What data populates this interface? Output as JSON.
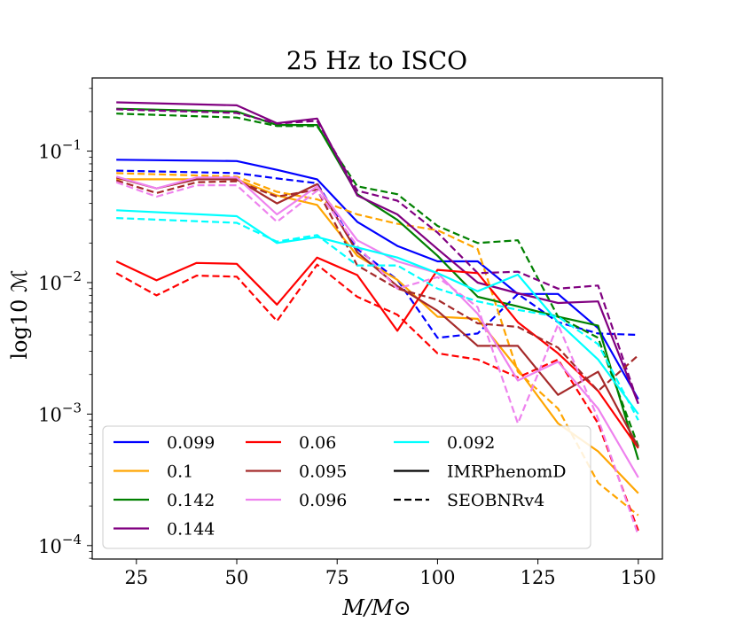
{
  "chart_data": {
    "type": "line",
    "title": "25 Hz to ISCO",
    "xlabel": "M/M⊙",
    "ylabel": "log10 ℳ",
    "y_scale": "log",
    "xlim": [
      14,
      156
    ],
    "ylim": [
      7.9e-05,
      0.36
    ],
    "x_ticks": [
      25,
      50,
      75,
      100,
      125,
      150
    ],
    "x_tick_labels": [
      "25",
      "50",
      "75",
      "100",
      "125",
      "150"
    ],
    "y_ticks": [
      0.0001,
      0.001,
      0.01,
      0.1
    ],
    "y_tick_labels": [
      {
        "base": "10",
        "exp": "−4"
      },
      {
        "base": "10",
        "exp": "−3"
      },
      {
        "base": "10",
        "exp": "−2"
      },
      {
        "base": "10",
        "exp": "−1"
      }
    ],
    "grid": false,
    "legend": {
      "position": "lower-left",
      "columns": 3,
      "entries": [
        {
          "label": "0.099",
          "color": "#0000ff",
          "style": "solid"
        },
        {
          "label": "0.1",
          "color": "#ffa500",
          "style": "solid"
        },
        {
          "label": "0.142",
          "color": "#008000",
          "style": "solid"
        },
        {
          "label": "0.144",
          "color": "#800080",
          "style": "solid"
        },
        {
          "label": "0.06",
          "color": "#ff0000",
          "style": "solid"
        },
        {
          "label": "0.095",
          "color": "#a52a2a",
          "style": "solid"
        },
        {
          "label": "0.096",
          "color": "#ee82ee",
          "style": "solid"
        },
        {
          "label": "0.092",
          "color": "#00ffff",
          "style": "solid"
        },
        {
          "label": "IMRPhenomD",
          "color": "#000000",
          "style": "solid"
        },
        {
          "label": "SEOBNRv4",
          "color": "#000000",
          "style": "dashed"
        }
      ]
    },
    "series": [
      {
        "name": "0.099",
        "model": "IMRPhenomD",
        "color": "#0000ff",
        "style": "solid",
        "x": [
          20,
          50,
          60,
          70,
          80,
          90,
          100,
          110,
          120,
          130,
          140,
          150
        ],
        "y": [
          0.086,
          0.084,
          0.072,
          0.061,
          0.029,
          0.019,
          0.0145,
          0.0145,
          0.0082,
          0.0082,
          0.0045,
          0.0013
        ]
      },
      {
        "name": "0.099",
        "model": "SEOBNRv4",
        "color": "#0000ff",
        "style": "dashed",
        "x": [
          20,
          50,
          60,
          70,
          80,
          90,
          100,
          110,
          120,
          130,
          140,
          150
        ],
        "y": [
          0.071,
          0.068,
          0.062,
          0.057,
          0.018,
          0.0105,
          0.0038,
          0.0041,
          0.0082,
          0.005,
          0.0041,
          0.004
        ]
      },
      {
        "name": "0.1",
        "model": "IMRPhenomD",
        "color": "#ffa500",
        "style": "solid",
        "x": [
          20,
          50,
          60,
          70,
          80,
          90,
          100,
          110,
          120,
          130,
          140,
          150
        ],
        "y": [
          0.061,
          0.061,
          0.046,
          0.039,
          0.016,
          0.0105,
          0.0055,
          0.0053,
          0.0022,
          0.00085,
          0.00052,
          0.00025
        ]
      },
      {
        "name": "0.1",
        "model": "SEOBNRv4",
        "color": "#ffa500",
        "style": "dashed",
        "x": [
          20,
          50,
          60,
          70,
          80,
          90,
          100,
          110,
          120,
          130,
          140,
          150
        ],
        "y": [
          0.068,
          0.064,
          0.049,
          0.043,
          0.033,
          0.028,
          0.025,
          0.018,
          0.0021,
          0.0011,
          0.0003,
          0.00017
        ]
      },
      {
        "name": "0.142",
        "model": "IMRPhenomD",
        "color": "#008000",
        "style": "solid",
        "x": [
          20,
          50,
          60,
          70,
          80,
          90,
          100,
          110,
          120,
          130,
          140,
          150
        ],
        "y": [
          0.21,
          0.2,
          0.158,
          0.158,
          0.047,
          0.03,
          0.016,
          0.0078,
          0.0066,
          0.0055,
          0.0047,
          0.00045
        ]
      },
      {
        "name": "0.142",
        "model": "SEOBNRv4",
        "color": "#008000",
        "style": "dashed",
        "x": [
          20,
          50,
          60,
          70,
          80,
          90,
          100,
          110,
          120,
          130,
          140,
          150
        ],
        "y": [
          0.193,
          0.18,
          0.155,
          0.155,
          0.054,
          0.047,
          0.027,
          0.02,
          0.021,
          0.0055,
          0.0038,
          0.00057
        ]
      },
      {
        "name": "0.144",
        "model": "IMRPhenomD",
        "color": "#800080",
        "style": "solid",
        "x": [
          20,
          50,
          60,
          70,
          80,
          90,
          100,
          110,
          120,
          130,
          140,
          150
        ],
        "y": [
          0.235,
          0.223,
          0.163,
          0.177,
          0.046,
          0.033,
          0.018,
          0.01,
          0.0083,
          0.007,
          0.0072,
          0.0012
        ]
      },
      {
        "name": "0.144",
        "model": "SEOBNRv4",
        "color": "#800080",
        "style": "dashed",
        "x": [
          20,
          50,
          60,
          70,
          80,
          90,
          100,
          110,
          120,
          130,
          140,
          150
        ],
        "y": [
          0.208,
          0.195,
          0.162,
          0.17,
          0.05,
          0.042,
          0.024,
          0.0118,
          0.0121,
          0.009,
          0.0095,
          0.0012
        ]
      },
      {
        "name": "0.06",
        "model": "IMRPhenomD",
        "color": "#ff0000",
        "style": "solid",
        "x": [
          20,
          30,
          40,
          50,
          60,
          70,
          80,
          90,
          100,
          110,
          120,
          130,
          140,
          150
        ],
        "y": [
          0.0145,
          0.0104,
          0.0141,
          0.0139,
          0.0068,
          0.0155,
          0.0114,
          0.0043,
          0.0125,
          0.0118,
          0.005,
          0.0029,
          0.0015,
          0.00055
        ]
      },
      {
        "name": "0.06",
        "model": "SEOBNRv4",
        "color": "#ff0000",
        "style": "dashed",
        "x": [
          20,
          30,
          40,
          50,
          60,
          70,
          80,
          90,
          100,
          110,
          120,
          130,
          140,
          150
        ],
        "y": [
          0.0118,
          0.008,
          0.0113,
          0.0111,
          0.0051,
          0.0137,
          0.0078,
          0.0057,
          0.0029,
          0.0026,
          0.0019,
          0.0026,
          0.00085,
          0.00013
        ]
      },
      {
        "name": "0.095",
        "model": "IMRPhenomD",
        "color": "#a52a2a",
        "style": "solid",
        "x": [
          20,
          30,
          40,
          50,
          60,
          70,
          80,
          90,
          100,
          110,
          120,
          130,
          140,
          150
        ],
        "y": [
          0.063,
          0.052,
          0.061,
          0.061,
          0.04,
          0.056,
          0.017,
          0.0094,
          0.0061,
          0.0033,
          0.0033,
          0.0014,
          0.0021,
          0.00056
        ]
      },
      {
        "name": "0.095",
        "model": "SEOBNRv4",
        "color": "#a52a2a",
        "style": "dashed",
        "x": [
          20,
          30,
          40,
          50,
          60,
          70,
          80,
          90,
          100,
          110,
          120,
          130,
          140,
          150
        ],
        "y": [
          0.06,
          0.048,
          0.058,
          0.059,
          0.045,
          0.051,
          0.0135,
          0.009,
          0.0074,
          0.0049,
          0.0046,
          0.0032,
          0.0015,
          0.0028
        ]
      },
      {
        "name": "0.096",
        "model": "IMRPhenomD",
        "color": "#ee82ee",
        "style": "solid",
        "x": [
          20,
          30,
          40,
          50,
          60,
          70,
          80,
          90,
          100,
          110,
          120,
          130,
          140,
          150
        ],
        "y": [
          0.064,
          0.052,
          0.063,
          0.063,
          0.033,
          0.054,
          0.021,
          0.0145,
          0.0118,
          0.0058,
          0.0018,
          0.0025,
          0.0011,
          0.00033
        ]
      },
      {
        "name": "0.096",
        "model": "SEOBNRv4",
        "color": "#ee82ee",
        "style": "dashed",
        "x": [
          20,
          30,
          40,
          50,
          60,
          70,
          80,
          90,
          100,
          110,
          120,
          130,
          140,
          150
        ],
        "y": [
          0.058,
          0.045,
          0.055,
          0.055,
          0.029,
          0.05,
          0.019,
          0.009,
          0.011,
          0.0065,
          0.00085,
          0.0048,
          0.00092,
          0.00012
        ]
      },
      {
        "name": "0.092",
        "model": "IMRPhenomD",
        "color": "#00ffff",
        "style": "solid",
        "x": [
          20,
          50,
          60,
          70,
          80,
          90,
          100,
          110,
          120,
          130,
          140,
          150
        ],
        "y": [
          0.0355,
          0.032,
          0.02,
          0.0222,
          0.0185,
          0.0155,
          0.0118,
          0.0086,
          0.0115,
          0.005,
          0.0026,
          0.001
        ]
      },
      {
        "name": "0.092",
        "model": "SEOBNRv4",
        "color": "#00ffff",
        "style": "dashed",
        "x": [
          20,
          50,
          60,
          70,
          80,
          90,
          100,
          110,
          120,
          130,
          140,
          150
        ],
        "y": [
          0.031,
          0.0285,
          0.0205,
          0.023,
          0.0135,
          0.0135,
          0.009,
          0.0072,
          0.0062,
          0.0055,
          0.0034,
          0.0009
        ]
      }
    ]
  }
}
